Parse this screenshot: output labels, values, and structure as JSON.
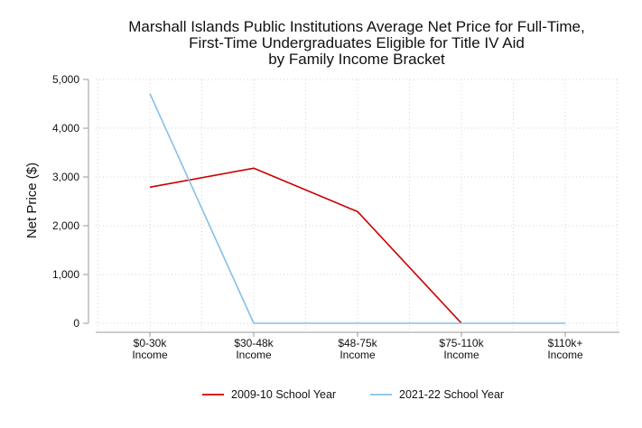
{
  "chart_data": {
    "type": "line",
    "title": [
      "Marshall Islands Public Institutions Average Net Price for Full-Time,",
      "First-Time Undergraduates Eligible for Title IV Aid",
      "by Family Income Bracket"
    ],
    "xlabel": "",
    "ylabel": "Net Price ($)",
    "categories": [
      [
        "$0-30k",
        "Income"
      ],
      [
        "$30-48k",
        "Income"
      ],
      [
        "$48-75k",
        "Income"
      ],
      [
        "$75-110k",
        "Income"
      ],
      [
        "$110k+",
        "Income"
      ]
    ],
    "ylim": [
      0,
      5000
    ],
    "yticks": [
      0,
      1000,
      2000,
      3000,
      4000,
      5000
    ],
    "ytick_labels": [
      "0",
      "1,000",
      "2,000",
      "3,000",
      "4,000",
      "5,000"
    ],
    "grid": true,
    "legend_position": "bottom",
    "series": [
      {
        "name": "2009-10 School Year",
        "color": "#cc0000",
        "values": [
          2790,
          3180,
          2290,
          0,
          null
        ]
      },
      {
        "name": "2021-22 School Year",
        "color": "#85c0e8",
        "values": [
          4710,
          0,
          0,
          0,
          0
        ]
      }
    ]
  }
}
